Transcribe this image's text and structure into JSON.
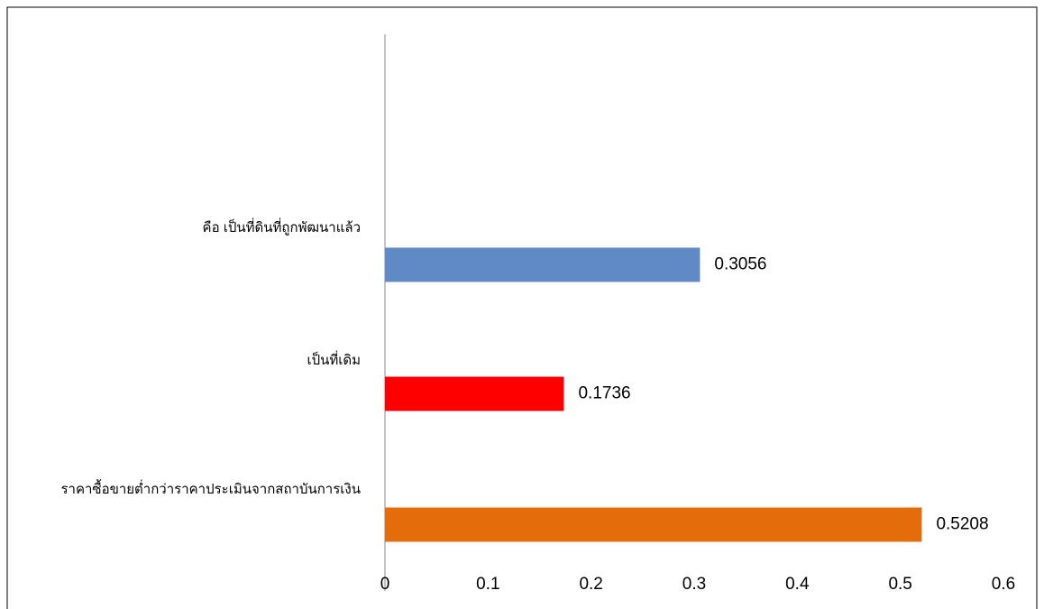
{
  "chart_data": {
    "type": "bar",
    "orientation": "horizontal",
    "categories": [
      "คือ เป็นที่ดินที่ถูกพัฒนาแล้ว",
      "เป็นที่เดิม",
      "ราคาซื้อขายต่ำกว่าราคาประเมินจากสถาบันการเงิน"
    ],
    "values": [
      0.3056,
      0.1736,
      0.5208
    ],
    "colors": [
      "#5f8ac6",
      "#ff0000",
      "#e46c0a"
    ],
    "xlim": [
      0,
      0.6
    ],
    "xticks": [
      0,
      0.1,
      0.2,
      0.3,
      0.4,
      0.5,
      0.6
    ],
    "grid": false
  }
}
